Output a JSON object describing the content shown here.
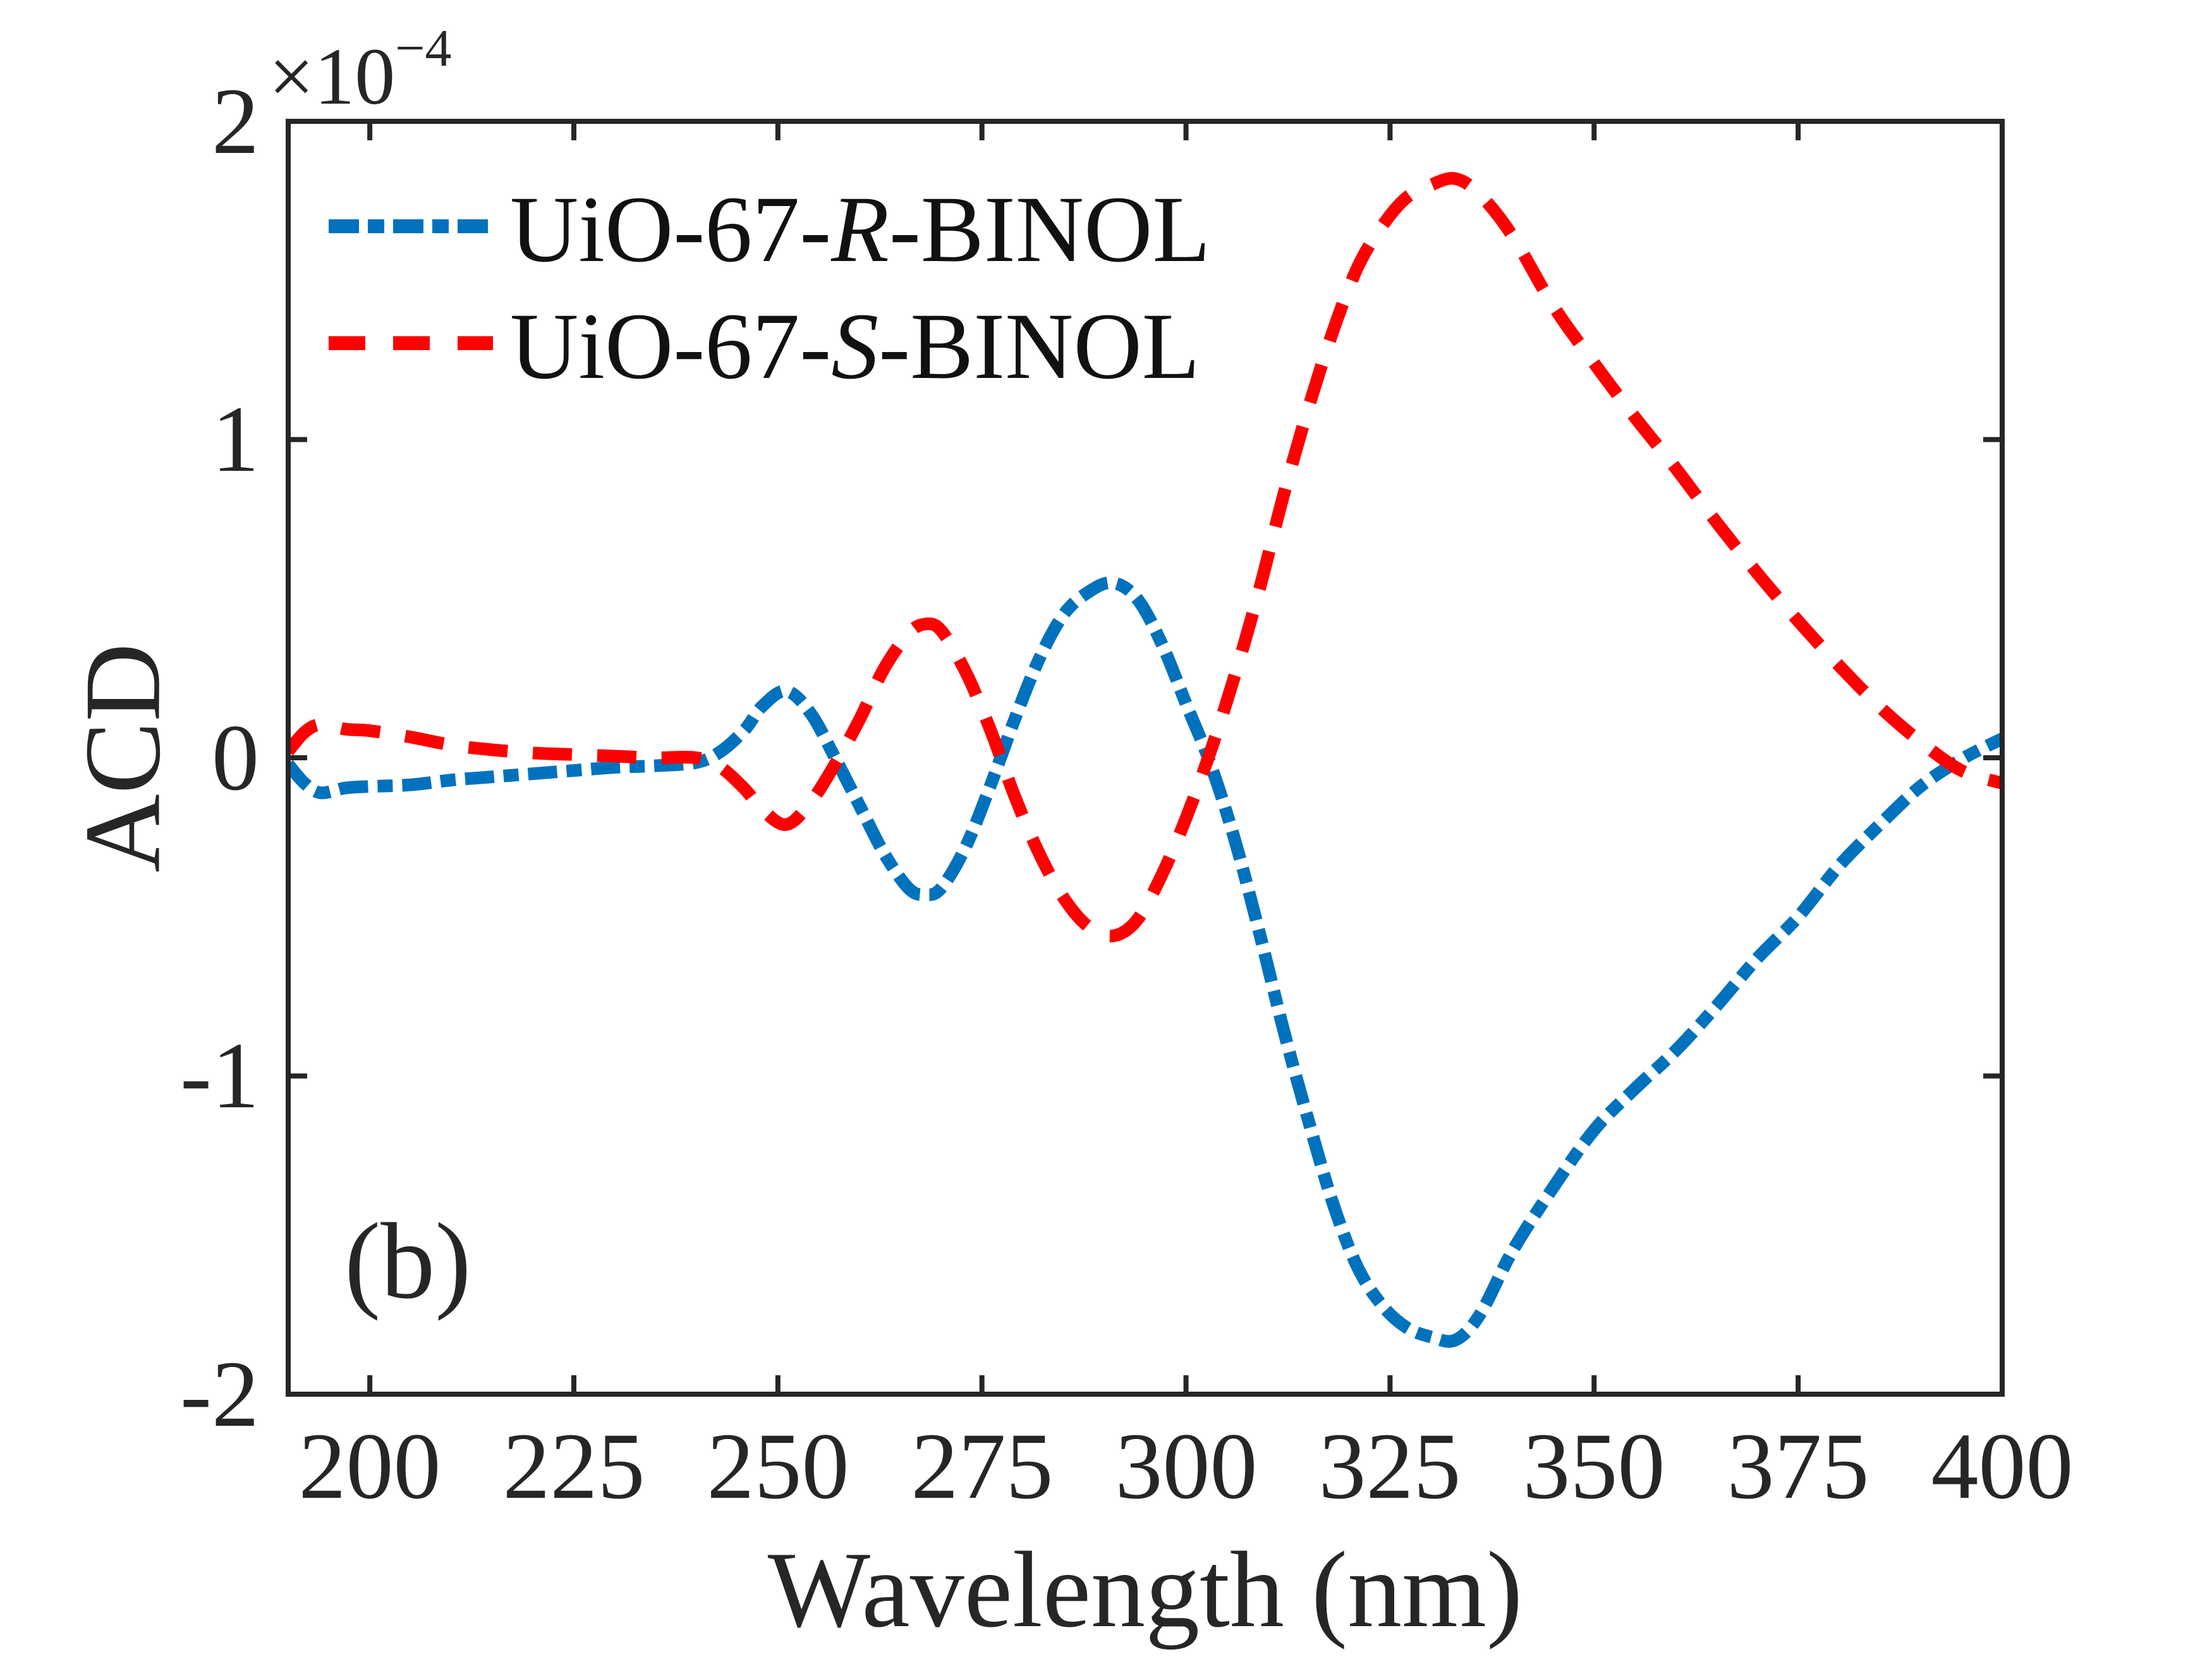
{
  "figure": {
    "panel_label": "(b)",
    "background": "#ffffff",
    "axis_color": "#262626"
  },
  "legend": {
    "items": [
      {
        "prefix": "UiO-67-",
        "stereo": "R",
        "suffix": "-BINOL",
        "color": "#0072BD",
        "style": "dash-dot"
      },
      {
        "prefix": "UiO-67-",
        "stereo": "S",
        "suffix": "-BINOL",
        "color": "#FF0000",
        "style": "dashed"
      }
    ]
  },
  "chart_data": {
    "type": "line",
    "title": "",
    "xlabel": "Wavelength (nm)",
    "ylabel": "ACD",
    "y_offset_base": "×10",
    "y_offset_exponent": "−4",
    "y_units": "×10⁻⁴",
    "xlim": [
      190,
      400
    ],
    "ylim": [
      -2,
      2
    ],
    "grid": false,
    "legend_position": "top-left-inside",
    "x_ticks": [
      200,
      225,
      250,
      275,
      300,
      325,
      350,
      375,
      400
    ],
    "y_ticks": [
      2,
      1,
      0,
      -1,
      -2
    ],
    "x_tick_labels": [
      "200",
      "225",
      "250",
      "275",
      "300",
      "325",
      "350",
      "375",
      "400"
    ],
    "y_tick_labels": [
      "2",
      "1",
      "0",
      "-1",
      "-2"
    ],
    "x": [
      190,
      192,
      194,
      197,
      200,
      205,
      210,
      215,
      220,
      225,
      230,
      235,
      240,
      243,
      246,
      248,
      251,
      254,
      257,
      260,
      263,
      266,
      268,
      270,
      273,
      276,
      279,
      282,
      285,
      288,
      291,
      294,
      297,
      300,
      303,
      306,
      309,
      312,
      315,
      318,
      321,
      324,
      327,
      330,
      333,
      336,
      340,
      345,
      350,
      355,
      360,
      365,
      370,
      375,
      380,
      385,
      390,
      395,
      400
    ],
    "series": [
      {
        "name": "UiO-67-R-BINOL",
        "color": "#0072BD",
        "style": "dash-dot",
        "values": [
          -0.02,
          -0.08,
          -0.11,
          -0.095,
          -0.09,
          -0.085,
          -0.07,
          -0.06,
          -0.05,
          -0.04,
          -0.03,
          -0.025,
          -0.015,
          0.02,
          0.09,
          0.16,
          0.21,
          0.14,
          0.0,
          -0.15,
          -0.3,
          -0.41,
          -0.43,
          -0.41,
          -0.28,
          -0.09,
          0.12,
          0.31,
          0.45,
          0.52,
          0.55,
          0.5,
          0.36,
          0.17,
          -0.02,
          -0.26,
          -0.55,
          -0.86,
          -1.14,
          -1.4,
          -1.6,
          -1.72,
          -1.79,
          -1.82,
          -1.83,
          -1.75,
          -1.55,
          -1.35,
          -1.17,
          -1.04,
          -0.92,
          -0.78,
          -0.63,
          -0.5,
          -0.34,
          -0.21,
          -0.09,
          -0.005,
          0.06
        ]
      },
      {
        "name": "UiO-67-S-BINOL",
        "color": "#FF0000",
        "style": "dashed",
        "values": [
          0.02,
          0.08,
          0.105,
          0.09,
          0.085,
          0.065,
          0.04,
          0.025,
          0.015,
          0.01,
          0.005,
          0.0,
          0.0,
          -0.03,
          -0.1,
          -0.16,
          -0.21,
          -0.14,
          -0.02,
          0.12,
          0.28,
          0.39,
          0.42,
          0.4,
          0.27,
          0.09,
          -0.12,
          -0.3,
          -0.44,
          -0.53,
          -0.56,
          -0.51,
          -0.37,
          -0.19,
          0.02,
          0.26,
          0.53,
          0.83,
          1.1,
          1.34,
          1.54,
          1.67,
          1.76,
          1.8,
          1.82,
          1.77,
          1.64,
          1.42,
          1.24,
          1.07,
          0.91,
          0.74,
          0.58,
          0.43,
          0.29,
          0.16,
          0.05,
          -0.04,
          -0.08
        ]
      }
    ]
  }
}
